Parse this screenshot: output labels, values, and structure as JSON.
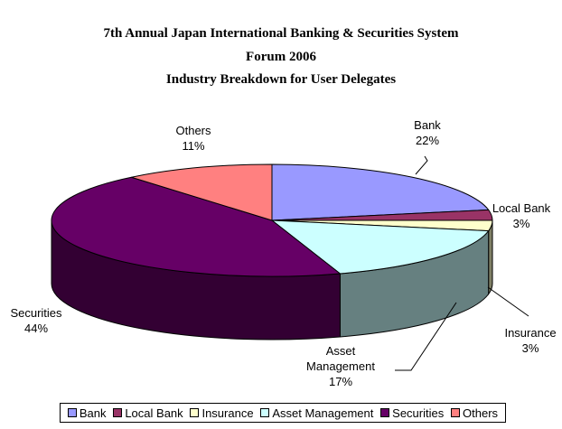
{
  "chart_data": {
    "type": "pie",
    "title": [
      "7th Annual Japan International Banking & Securities System",
      "Forum 2006",
      "Industry Breakdown for User Delegates"
    ],
    "categories": [
      "Bank",
      "Local Bank",
      "Insurance",
      "Asset Management",
      "Securities",
      "Others"
    ],
    "values": [
      22,
      3,
      3,
      17,
      44,
      11
    ],
    "value_labels": [
      "22%",
      "3%",
      "3%",
      "17%",
      "44%",
      "11%"
    ],
    "label_lines": [
      [
        "Bank",
        "22%"
      ],
      [
        "Local Bank",
        "3%"
      ],
      [
        "Insurance",
        "3%"
      ],
      [
        "Asset",
        "Management",
        "17%"
      ],
      [
        "Securities",
        "44%"
      ],
      [
        "Others",
        "11%"
      ]
    ],
    "colors": [
      "#9999ff",
      "#993366",
      "#ffffcc",
      "#ccffff",
      "#660066",
      "#ff8080"
    ],
    "legend_position": "bottom",
    "style": "3d-pie"
  }
}
